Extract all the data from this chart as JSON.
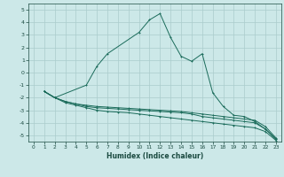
{
  "xlabel": "Humidex (Indice chaleur)",
  "bg_color": "#cce8e8",
  "grid_color": "#aacccc",
  "line_color": "#1a6b5a",
  "xlim": [
    -0.5,
    23.5
  ],
  "ylim": [
    -5.5,
    5.5
  ],
  "xticks": [
    0,
    1,
    2,
    3,
    4,
    5,
    6,
    7,
    8,
    9,
    10,
    11,
    12,
    13,
    14,
    15,
    16,
    17,
    18,
    19,
    20,
    21,
    22,
    23
  ],
  "yticks": [
    -5,
    -4,
    -3,
    -2,
    -1,
    0,
    1,
    2,
    3,
    4,
    5
  ],
  "peak_x": [
    1,
    2,
    5,
    6,
    7,
    10,
    11,
    12,
    13,
    14,
    15,
    16,
    17,
    18,
    19,
    20,
    21,
    22,
    23
  ],
  "peak_y": [
    -1.5,
    -2.0,
    -1.0,
    0.5,
    1.5,
    3.2,
    4.2,
    4.7,
    2.8,
    1.3,
    0.9,
    1.5,
    -1.6,
    -2.7,
    -3.4,
    -3.5,
    -3.9,
    -4.5,
    -5.3
  ],
  "flat1_x": [
    1,
    2,
    3,
    4,
    5,
    6,
    7,
    8,
    9,
    10,
    11,
    12,
    13,
    14,
    15,
    16,
    17,
    18,
    19,
    20,
    21,
    22,
    23
  ],
  "flat1_y": [
    -1.5,
    -2.0,
    -2.3,
    -2.5,
    -2.6,
    -2.7,
    -2.75,
    -2.8,
    -2.85,
    -2.9,
    -2.95,
    -3.0,
    -3.05,
    -3.1,
    -3.2,
    -3.3,
    -3.4,
    -3.5,
    -3.6,
    -3.7,
    -3.8,
    -4.3,
    -5.2
  ],
  "flat2_x": [
    1,
    2,
    3,
    4,
    5,
    6,
    7,
    8,
    9,
    10,
    11,
    12,
    13,
    14,
    15,
    16,
    17,
    18,
    19,
    20,
    21,
    22,
    23
  ],
  "flat2_y": [
    -1.5,
    -2.0,
    -2.3,
    -2.5,
    -2.7,
    -2.8,
    -2.85,
    -2.9,
    -2.95,
    -3.0,
    -3.05,
    -3.1,
    -3.15,
    -3.2,
    -3.3,
    -3.5,
    -3.6,
    -3.7,
    -3.8,
    -3.9,
    -4.0,
    -4.5,
    -5.3
  ],
  "flat3_x": [
    1,
    2,
    3,
    4,
    5,
    6,
    7,
    8,
    9,
    10,
    11,
    12,
    13,
    14,
    15,
    16,
    17,
    18,
    19,
    20,
    21,
    22,
    23
  ],
  "flat3_y": [
    -1.5,
    -2.0,
    -2.4,
    -2.6,
    -2.8,
    -3.0,
    -3.1,
    -3.15,
    -3.2,
    -3.3,
    -3.4,
    -3.5,
    -3.6,
    -3.7,
    -3.8,
    -3.9,
    -4.0,
    -4.1,
    -4.2,
    -4.3,
    -4.4,
    -4.7,
    -5.4
  ]
}
